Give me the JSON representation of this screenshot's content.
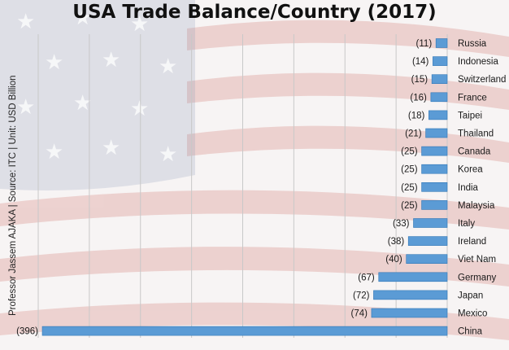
{
  "side_note": "Professor Jassem AJAKA | Source: ITC | Unit: USD Billion",
  "colors": {
    "bar": "#5b9bd5",
    "bar_edge": "#2e75b6",
    "grid": "#c8c8c8",
    "text": "#1a1a1a"
  },
  "chart_data": {
    "type": "bar",
    "orientation": "horizontal",
    "title": "USA Trade Balance/Country (2017)",
    "xlabel": "",
    "ylabel": "",
    "xlim": [
      -400,
      0
    ],
    "grid": true,
    "categories": [
      "Russia",
      "Indonesia",
      "Switzerland",
      "France",
      "Taipei",
      "Thailand",
      "Canada",
      "Korea",
      "India",
      "Malaysia",
      "Italy",
      "Ireland",
      "Viet Nam",
      "Germany",
      "Japan",
      "Mexico",
      "China"
    ],
    "values": [
      -11,
      -14,
      -15,
      -16,
      -18,
      -21,
      -25,
      -25,
      -25,
      -25,
      -33,
      -38,
      -40,
      -67,
      -72,
      -74,
      -396
    ],
    "value_labels": [
      "(11)",
      "(14)",
      "(15)",
      "(16)",
      "(18)",
      "(21)",
      "(25)",
      "(25)",
      "(25)",
      "(25)",
      "(33)",
      "(38)",
      "(40)",
      "(67)",
      "(72)",
      "(74)",
      "(396)"
    ]
  }
}
